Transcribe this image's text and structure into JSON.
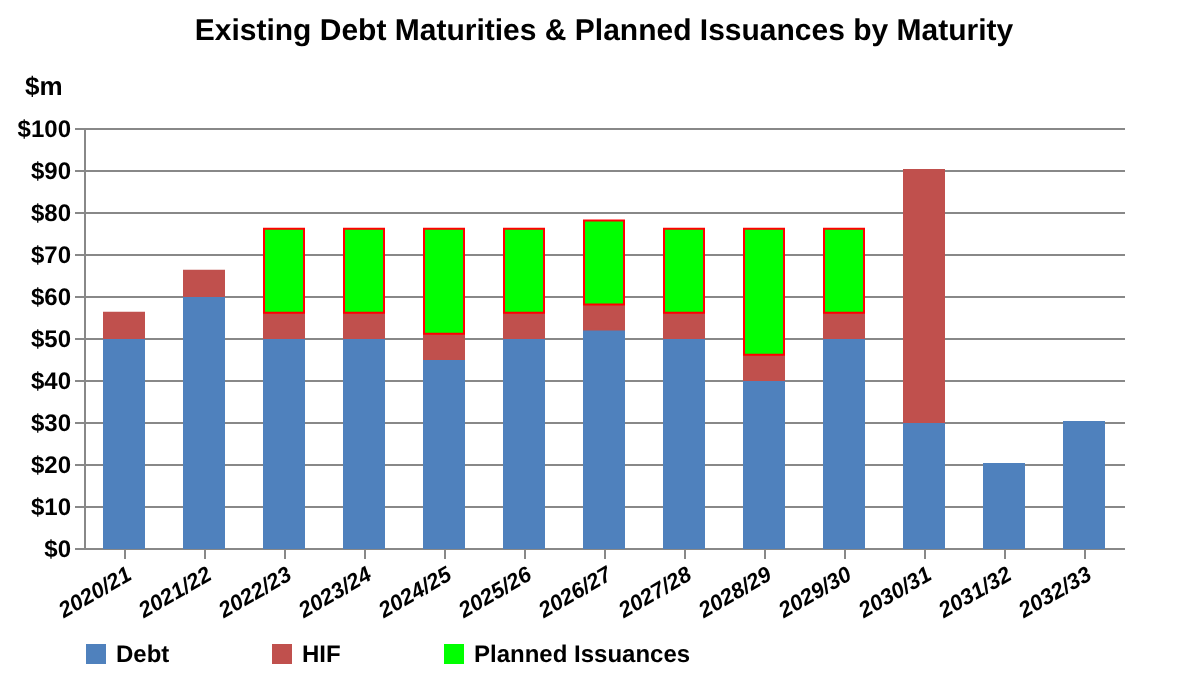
{
  "chart_data": {
    "type": "bar",
    "title": "Existing Debt Maturities & Planned Issuances by Maturity",
    "ylabel": "$m",
    "categories": [
      "2020/21",
      "2021/22",
      "2022/23",
      "2023/24",
      "2024/25",
      "2025/26",
      "2026/27",
      "2027/28",
      "2028/29",
      "2029/30",
      "2030/31",
      "2031/32",
      "2032/33"
    ],
    "stacked": true,
    "series": [
      {
        "name": "Debt",
        "color": "#4f81bd",
        "values": [
          50,
          60,
          50,
          50,
          45,
          50,
          52,
          50,
          40,
          50,
          30,
          20,
          30
        ]
      },
      {
        "name": "HIF",
        "color": "#c0504d",
        "values": [
          6,
          6,
          6,
          6,
          6,
          6,
          6,
          6,
          6,
          6,
          60,
          null,
          null
        ]
      },
      {
        "name": "Planned Issuances",
        "color": "#00ff00",
        "values": [
          null,
          null,
          20,
          20,
          25,
          20,
          20,
          20,
          30,
          20,
          null,
          null,
          null
        ]
      }
    ],
    "ylim": [
      0,
      100
    ],
    "yticks": [
      {
        "value": 0,
        "label": "$0"
      },
      {
        "value": 10,
        "label": "$10"
      },
      {
        "value": 20,
        "label": "$20"
      },
      {
        "value": 30,
        "label": "$30"
      },
      {
        "value": 40,
        "label": "$40"
      },
      {
        "value": 50,
        "label": "$50"
      },
      {
        "value": 60,
        "label": "$60"
      },
      {
        "value": 70,
        "label": "$70"
      },
      {
        "value": 80,
        "label": "$80"
      },
      {
        "value": 90,
        "label": "$90"
      },
      {
        "value": 100,
        "label": "$100"
      }
    ],
    "grid": "y",
    "legend": "bottom"
  }
}
